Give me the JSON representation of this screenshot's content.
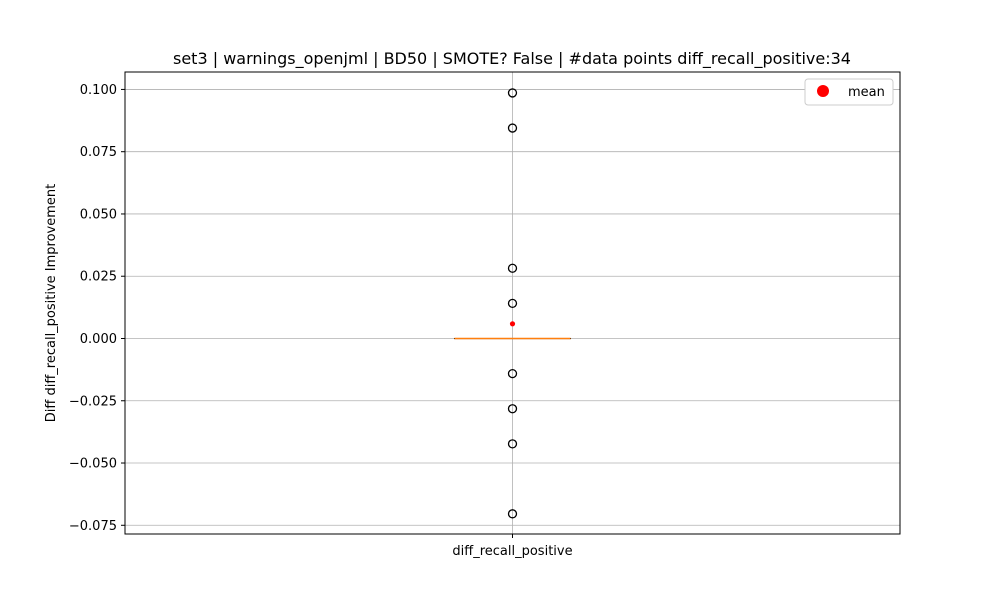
{
  "chart_data": {
    "type": "box",
    "title": "set3 | warnings_openjml | BD50 | SMOTE? False | #data points diff_recall_positive:34",
    "xlabel": "",
    "ylabel": "Diff diff_recall_positive Improvement",
    "categories": [
      "diff_recall_positive"
    ],
    "ylim": [
      -0.0785,
      0.107
    ],
    "yticks": [
      -0.075,
      -0.05,
      -0.025,
      0.0,
      0.025,
      0.05,
      0.075,
      0.1
    ],
    "ytick_labels": [
      "−0.075",
      "−0.050",
      "−0.025",
      "0.000",
      "0.025",
      "0.050",
      "0.075",
      "0.100"
    ],
    "grid": true,
    "legend": {
      "position": "top-right",
      "entries": [
        "mean"
      ]
    },
    "box": {
      "q1": 0.0,
      "median": 0.0,
      "q3": 0.0,
      "whisker_low": 0.0,
      "whisker_high": 0.0,
      "mean": 0.0059,
      "outliers": [
        0.0986,
        0.0845,
        0.0282,
        0.0141,
        -0.0141,
        -0.0282,
        -0.0423,
        -0.0704
      ]
    },
    "colors": {
      "median": "#ff7f0e",
      "mean": "#ff0000",
      "outlier_edge": "#000000",
      "grid": "#b0b0b0"
    }
  }
}
